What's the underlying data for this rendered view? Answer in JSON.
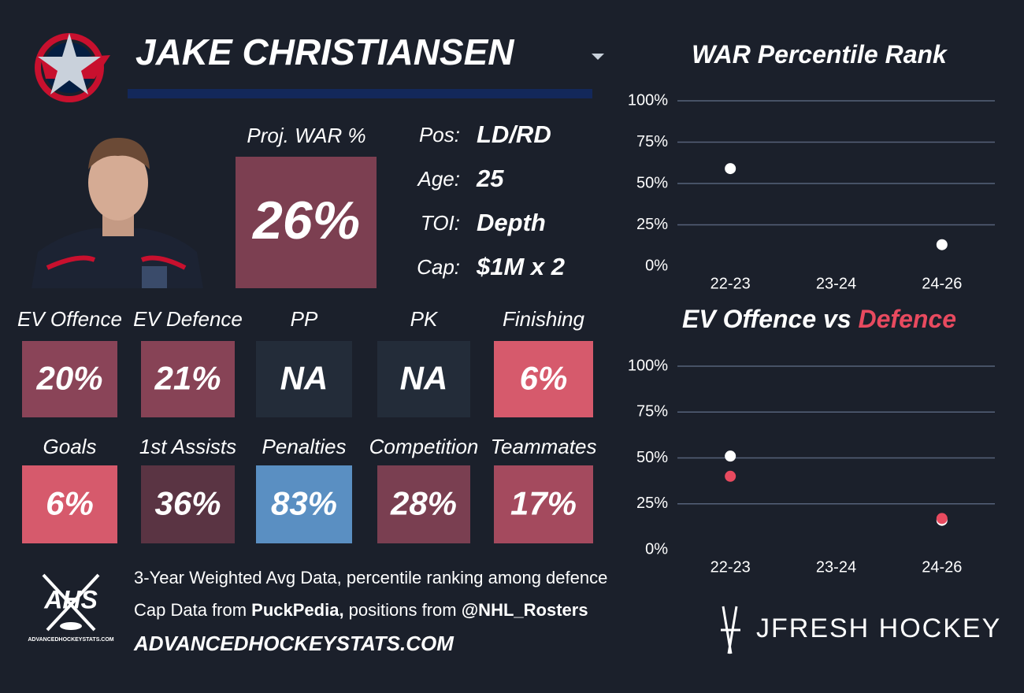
{
  "header": {
    "player": "JAKE CHRISTIANSEN"
  },
  "proj_war": {
    "label": "Proj. WAR %",
    "value": "26%",
    "color": "#7c3f51"
  },
  "info": [
    {
      "label": "Pos:",
      "value": "LD/RD"
    },
    {
      "label": "Age:",
      "value": "25"
    },
    {
      "label": "TOI:",
      "value": "Depth"
    },
    {
      "label": "Cap:",
      "value": "$1M x 2"
    }
  ],
  "tiles": [
    {
      "label": "EV Offence",
      "value": "20%",
      "color": "#8a4458"
    },
    {
      "label": "EV Defence",
      "value": "21%",
      "color": "#874356"
    },
    {
      "label": "PP",
      "value": "NA",
      "color": "#232c39"
    },
    {
      "label": "PK",
      "value": "NA",
      "color": "#232c39"
    },
    {
      "label": "Finishing",
      "value": "6%",
      "color": "#d65a6c"
    },
    {
      "label": "Goals",
      "value": "6%",
      "color": "#d65a6c"
    },
    {
      "label": "1st Assists",
      "value": "36%",
      "color": "#5a3443"
    },
    {
      "label": "Penalties",
      "value": "83%",
      "color": "#5a8fc2"
    },
    {
      "label": "Competition",
      "value": "28%",
      "color": "#7a3f51"
    },
    {
      "label": "Teammates",
      "value": "17%",
      "color": "#a44a5e"
    }
  ],
  "footer": {
    "line1": "3-Year Weighted Avg Data, percentile ranking among defence",
    "line2": [
      "Cap Data from ",
      "PuckPedia,",
      " positions from ",
      "@NHL_Rosters"
    ],
    "site": "ADVANCEDHOCKEYSTATS.COM",
    "ahs_logo": "AHS",
    "ahs_small": "ADVANCEDHOCKEYSTATS.COM",
    "brand": "JFRESH HOCKEY"
  },
  "chart_data": [
    {
      "type": "scatter",
      "title": "WAR Percentile Rank",
      "categories": [
        "22-23",
        "23-24",
        "24-26"
      ],
      "series": [
        {
          "color": "#ffffff",
          "values": [
            59,
            null,
            13
          ]
        }
      ],
      "ylim": [
        0,
        100
      ],
      "yticks": [
        {
          "value": 0,
          "label": "0%"
        },
        {
          "value": 25,
          "label": "25%"
        },
        {
          "value": 50,
          "label": "50%"
        },
        {
          "value": 75,
          "label": "75%"
        },
        {
          "value": 100,
          "label": "100%"
        }
      ],
      "grid": true
    },
    {
      "type": "scatter",
      "title": "EV Offence vs",
      "title_highlight": "Defence",
      "highlight_color": "#e84a5f",
      "categories": [
        "22-23",
        "23-24",
        "24-26"
      ],
      "series": [
        {
          "color": "#ffffff",
          "values": [
            51,
            null,
            16
          ]
        },
        {
          "color": "#e84a5f",
          "values": [
            40,
            null,
            17
          ]
        }
      ],
      "ylim": [
        0,
        100
      ],
      "yticks": [
        {
          "value": 0,
          "label": "0%"
        },
        {
          "value": 25,
          "label": "25%"
        },
        {
          "value": 50,
          "label": "50%"
        },
        {
          "value": 75,
          "label": "75%"
        },
        {
          "value": 100,
          "label": "100%"
        }
      ],
      "grid": true
    }
  ]
}
